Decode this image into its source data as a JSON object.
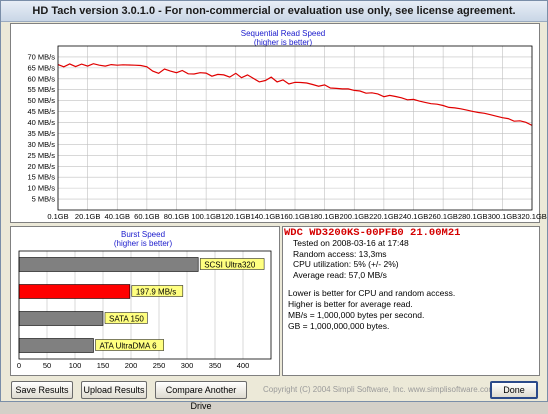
{
  "window": {
    "title": "HD Tach version 3.0.1.0  - For non-commercial or evaluation use only, see license agreement."
  },
  "seq_chart": {
    "title": "Sequential Read Speed",
    "subtitle": "(higher is better)"
  },
  "burst_chart": {
    "title": "Burst Speed",
    "subtitle": "(higher is better)"
  },
  "chart_data": [
    {
      "type": "line",
      "title": "Sequential Read Speed",
      "subtitle": "(higher is better)",
      "xlabel": "",
      "ylabel": "",
      "y_ticks": [
        "70 MB/s",
        "65 MB/s",
        "60 MB/s",
        "55 MB/s",
        "50 MB/s",
        "45 MB/s",
        "40 MB/s",
        "35 MB/s",
        "30 MB/s",
        "25 MB/s",
        "20 MB/s",
        "15 MB/s",
        "10 MB/s",
        "5 MB/s"
      ],
      "x_ticks": [
        "0.1GB",
        "20.1GB",
        "40.1GB",
        "60.1GB",
        "80.1GB",
        "100.1GB",
        "120.1GB",
        "140.1GB",
        "160.1GB",
        "180.1GB",
        "200.1GB",
        "220.1GB",
        "240.1GB",
        "260.1GB",
        "280.1GB",
        "300.1GB",
        "320.1GB"
      ],
      "ylim": [
        0,
        75
      ],
      "xlim": [
        0.1,
        320.1
      ],
      "grid": true,
      "series": [
        {
          "color": "#e00000",
          "x": [
            0.1,
            4,
            8,
            12,
            16,
            20.1,
            24,
            28,
            32,
            36,
            40.1,
            44,
            48,
            52,
            56,
            60.1,
            64,
            68,
            72,
            76,
            80.1,
            84,
            88,
            92,
            96,
            100.1,
            104,
            108,
            112,
            116,
            120.1,
            124,
            128,
            132,
            136,
            140.1,
            144,
            148,
            152,
            156,
            160.1,
            164,
            168,
            172,
            176,
            180.1,
            184,
            188,
            192,
            196,
            200.1,
            204,
            208,
            212,
            216,
            220.1,
            224,
            228,
            232,
            236,
            240.1,
            244,
            248,
            252,
            256,
            260.1,
            264,
            268,
            272,
            276,
            280.1,
            284,
            288,
            292,
            296,
            300.1,
            304,
            308,
            312,
            316,
            320.1
          ],
          "y": [
            66.5,
            65.5,
            66.8,
            65.6,
            66.7,
            65.8,
            66.9,
            66.2,
            65.8,
            66.5,
            66.2,
            66.4,
            66.3,
            66.2,
            66.1,
            65.5,
            63.5,
            62.5,
            64.5,
            63.5,
            62.8,
            63.8,
            62.3,
            62.2,
            62.8,
            62.6,
            61.2,
            62.0,
            61.8,
            60.8,
            62.5,
            60.5,
            61.8,
            60.2,
            58.6,
            59.2,
            60.8,
            58.6,
            59.5,
            57.6,
            58.4,
            58.3,
            58.1,
            57.4,
            56.6,
            57.2,
            55.8,
            55.6,
            55.4,
            55.4,
            54.7,
            54.4,
            53.4,
            53.6,
            53.1,
            51.8,
            52.4,
            51.9,
            51.3,
            50.4,
            50.6,
            49.8,
            49.2,
            48.6,
            48.4,
            47.8,
            46.9,
            46.7,
            46.3,
            45.7,
            45.1,
            44.6,
            44.2,
            43.6,
            42.9,
            42.2,
            41.8,
            40.6,
            40.8,
            40.1,
            38.7
          ]
        }
      ]
    },
    {
      "type": "bar",
      "title": "Burst Speed",
      "subtitle": "(higher is better)",
      "orientation": "horizontal",
      "xlim": [
        0,
        450
      ],
      "x_ticks": [
        "0",
        "50",
        "100",
        "150",
        "200",
        "250",
        "300",
        "350",
        "400"
      ],
      "grid": true,
      "bars": [
        {
          "label": "SCSI Ultra320",
          "value": 320,
          "color": "#808080"
        },
        {
          "label": "197.9 MB/s",
          "value": 197.9,
          "color": "#ff0000"
        },
        {
          "label": "SATA 150",
          "value": 150,
          "color": "#808080"
        },
        {
          "label": "ATA UltraDMA 6",
          "value": 133,
          "color": "#808080"
        }
      ]
    }
  ],
  "drive": {
    "name": "WDC WD3200KS-00PFB0 21.00M21"
  },
  "results": {
    "tested_on": "Tested on 2008-03-16 at 17:48",
    "random_access": "Random access: 13,3ms",
    "cpu": "CPU utilization: 5% (+/- 2%)",
    "average": "Average read: 57,0 MB/s"
  },
  "notes": {
    "line1": "Lower is better for CPU and random access.",
    "line2": "Higher is better for average read.",
    "line3": "MB/s = 1,000,000 bytes per second.",
    "line4": "GB = 1,000,000,000 bytes."
  },
  "buttons": {
    "save": "Save Results",
    "upload": "Upload Results",
    "compare": "Compare Another Drive",
    "done": "Done"
  },
  "footer": {
    "copyright": "Copyright (C) 2004 Simpli Software, Inc. www.simplisoftware.com"
  }
}
